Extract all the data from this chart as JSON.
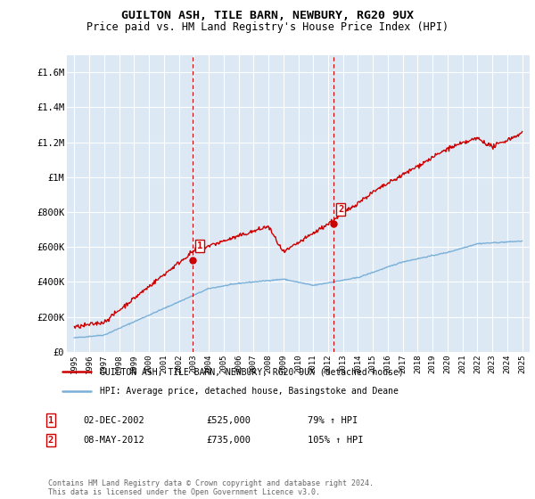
{
  "title": "GUILTON ASH, TILE BARN, NEWBURY, RG20 9UX",
  "subtitle": "Price paid vs. HM Land Registry's House Price Index (HPI)",
  "ylim": [
    0,
    1700000
  ],
  "yticks": [
    0,
    200000,
    400000,
    600000,
    800000,
    1000000,
    1200000,
    1400000,
    1600000
  ],
  "ytick_labels": [
    "£0",
    "£200K",
    "£400K",
    "£600K",
    "£800K",
    "£1M",
    "£1.2M",
    "£1.4M",
    "£1.6M"
  ],
  "xlim_start": 1994.5,
  "xlim_end": 2025.5,
  "background_color": "#ffffff",
  "plot_bg_color": "#dce9f5",
  "grid_color": "#ffffff",
  "hpi_color": "#7ab0d8",
  "price_color": "#cc0000",
  "vline_color": "#cc0000",
  "sale1_x": 2002.92,
  "sale1_y": 525000,
  "sale1_label": "1",
  "sale1_date": "02-DEC-2002",
  "sale1_price": "£525,000",
  "sale1_hpi": "79% ↑ HPI",
  "sale2_x": 2012.36,
  "sale2_y": 735000,
  "sale2_label": "2",
  "sale2_date": "08-MAY-2012",
  "sale2_price": "£735,000",
  "sale2_hpi": "105% ↑ HPI",
  "legend_line1": "GUILTON ASH, TILE BARN, NEWBURY, RG20 9UX (detached house)",
  "legend_line2": "HPI: Average price, detached house, Basingstoke and Deane",
  "footer": "Contains HM Land Registry data © Crown copyright and database right 2024.\nThis data is licensed under the Open Government Licence v3.0.",
  "title_fontsize": 9.5,
  "subtitle_fontsize": 8.5
}
